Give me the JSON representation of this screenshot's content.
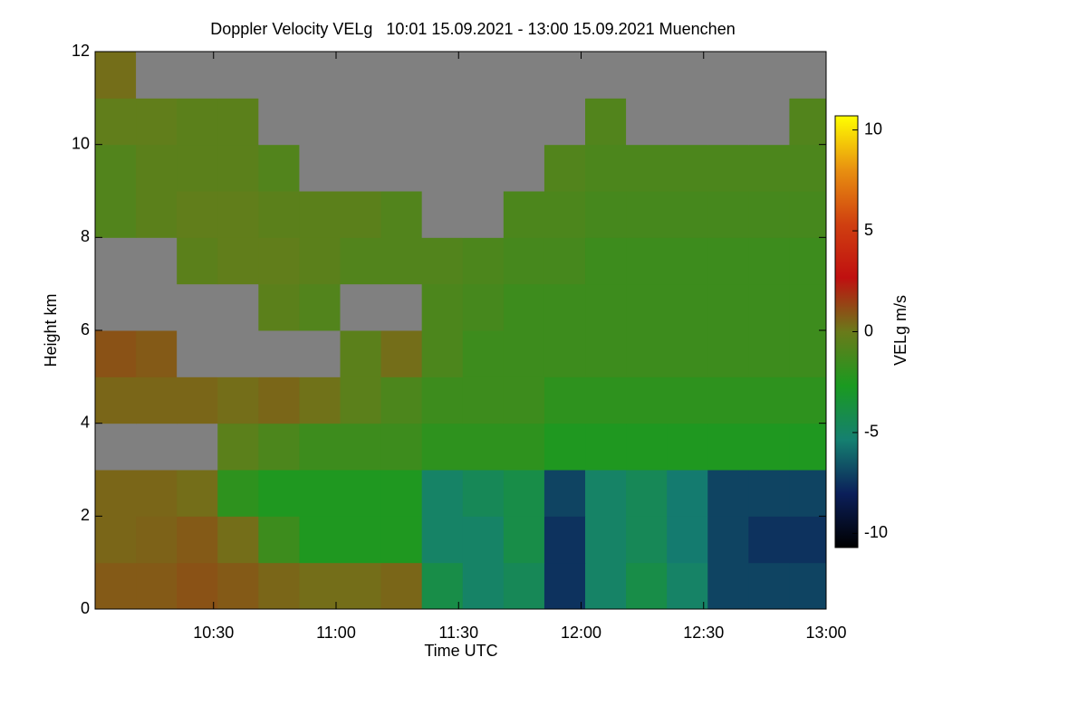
{
  "chart_data": {
    "type": "heatmap",
    "title": "Doppler Velocity VELg   10:01 15.09.2021 - 13:00 15.09.2021 Muenchen",
    "x_label": "Time UTC",
    "y_label": "Height km",
    "colorbar_label": "VELg m/s",
    "x_bins": [
      601,
      611,
      621,
      631,
      641,
      651,
      661,
      671,
      681,
      691,
      701,
      711,
      721,
      731,
      741,
      751,
      761,
      771,
      780
    ],
    "y_bins": [
      0,
      1,
      2,
      3,
      4,
      5,
      6,
      7,
      8,
      9,
      10,
      11,
      12
    ],
    "values": [
      [
        0.8,
        0.8,
        1.0,
        0.8,
        0.5,
        0.3,
        0.3,
        0.5,
        -4,
        -5,
        -4.5,
        -7.5,
        -5,
        -4,
        -5,
        -7,
        -7,
        -7
      ],
      [
        0.5,
        0.6,
        0.8,
        0.3,
        -1.5,
        -2.5,
        -2.5,
        -2.5,
        -5,
        -5,
        -4,
        -7.5,
        -5,
        -4.5,
        -5.5,
        -7,
        -7.5,
        -7.5
      ],
      [
        0.5,
        0.5,
        0.3,
        -2,
        -2.5,
        -2.5,
        -2.5,
        -2.5,
        -5,
        -4.5,
        -4,
        -7,
        -5,
        -4.5,
        -5.5,
        -7,
        -7,
        -7
      ],
      [
        null,
        null,
        null,
        -0.5,
        -1,
        -1.5,
        -1.5,
        -1.5,
        -2,
        -2,
        -2,
        -2.5,
        -2.5,
        -2.5,
        -2.5,
        -2.5,
        -2.5,
        -2.5
      ],
      [
        0.5,
        0.5,
        0.5,
        0.3,
        0.5,
        0.2,
        -0.5,
        -1,
        -1.5,
        -1.5,
        -1.5,
        -2,
        -2,
        -2,
        -2,
        -2,
        -2,
        -2
      ],
      [
        1.0,
        0.8,
        null,
        null,
        null,
        null,
        -0.5,
        0.3,
        -1,
        -1.5,
        -1.5,
        -1.5,
        -1.5,
        -1.5,
        -1.5,
        -1.5,
        -1.5,
        -1.5
      ],
      [
        null,
        null,
        null,
        null,
        -0.5,
        -0.8,
        null,
        null,
        -1,
        -1.2,
        -1.5,
        -1.5,
        -1.5,
        -1.5,
        -1.5,
        -1.5,
        -1.5,
        -1.5
      ],
      [
        null,
        null,
        -0.5,
        -0.3,
        -0.3,
        -0.5,
        -0.8,
        -0.8,
        -0.8,
        -1,
        -1.2,
        -1.2,
        -1.5,
        -1.5,
        -1.5,
        -1.5,
        -1.5,
        -1.5
      ],
      [
        -0.8,
        -0.5,
        -0.3,
        -0.3,
        -0.5,
        -0.5,
        -0.5,
        -0.8,
        null,
        null,
        -1,
        -1,
        -1.2,
        -1.2,
        -1.2,
        -1.2,
        -1.2,
        -1.2
      ],
      [
        -0.8,
        -0.5,
        -0.5,
        -0.5,
        -0.8,
        null,
        null,
        null,
        null,
        null,
        null,
        -0.8,
        -1,
        -1,
        -1,
        -1,
        -1,
        -1
      ],
      [
        -0.3,
        -0.3,
        -0.5,
        -0.5,
        null,
        null,
        null,
        null,
        null,
        null,
        null,
        null,
        -0.8,
        null,
        null,
        null,
        null,
        -0.8
      ],
      [
        0.3,
        null,
        null,
        null,
        null,
        null,
        null,
        null,
        null,
        null,
        null,
        null,
        null,
        null,
        null,
        null,
        null,
        null
      ]
    ],
    "xlim": [
      601,
      780
    ],
    "xticks": [
      {
        "value": 630,
        "label": "10:30"
      },
      {
        "value": 660,
        "label": "11:00"
      },
      {
        "value": 690,
        "label": "11:30"
      },
      {
        "value": 720,
        "label": "12:00"
      },
      {
        "value": 750,
        "label": "12:30"
      },
      {
        "value": 780,
        "label": "13:00"
      }
    ],
    "ylim": [
      0,
      12
    ],
    "yticks": [
      0,
      2,
      4,
      6,
      8,
      10,
      12
    ],
    "zlim": [
      -10.7,
      10.7
    ],
    "zticks": [
      -10,
      -5,
      0,
      5,
      10
    ],
    "colormap": [
      "#000000",
      "#0b1f5a",
      "#158070",
      "#1a9a20",
      "#6a7a1a",
      "#c01010",
      "#d04010",
      "#e89010",
      "#ffff00"
    ],
    "missing_color": "#808080"
  }
}
